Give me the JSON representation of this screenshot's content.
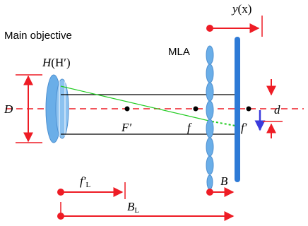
{
  "labels": {
    "main_objective": "Main objective",
    "mla": "MLA",
    "H": "H",
    "H_prime_paren": "(H′)",
    "D": "D",
    "F_prime": "F′",
    "f": "f",
    "f_prime": "f′",
    "d": "d",
    "y": "y",
    "x_paren": "(x)",
    "fL": "f′",
    "fL_sub": "L",
    "B": "B",
    "BL": "B",
    "BL_sub": "L"
  },
  "colors": {
    "red": "#ee1c25",
    "lens_blue": "#6aaee8",
    "sensor_blue": "#2e7ad6",
    "arrow_blue": "#3b3bdc",
    "ray_green": "#22cc22"
  }
}
